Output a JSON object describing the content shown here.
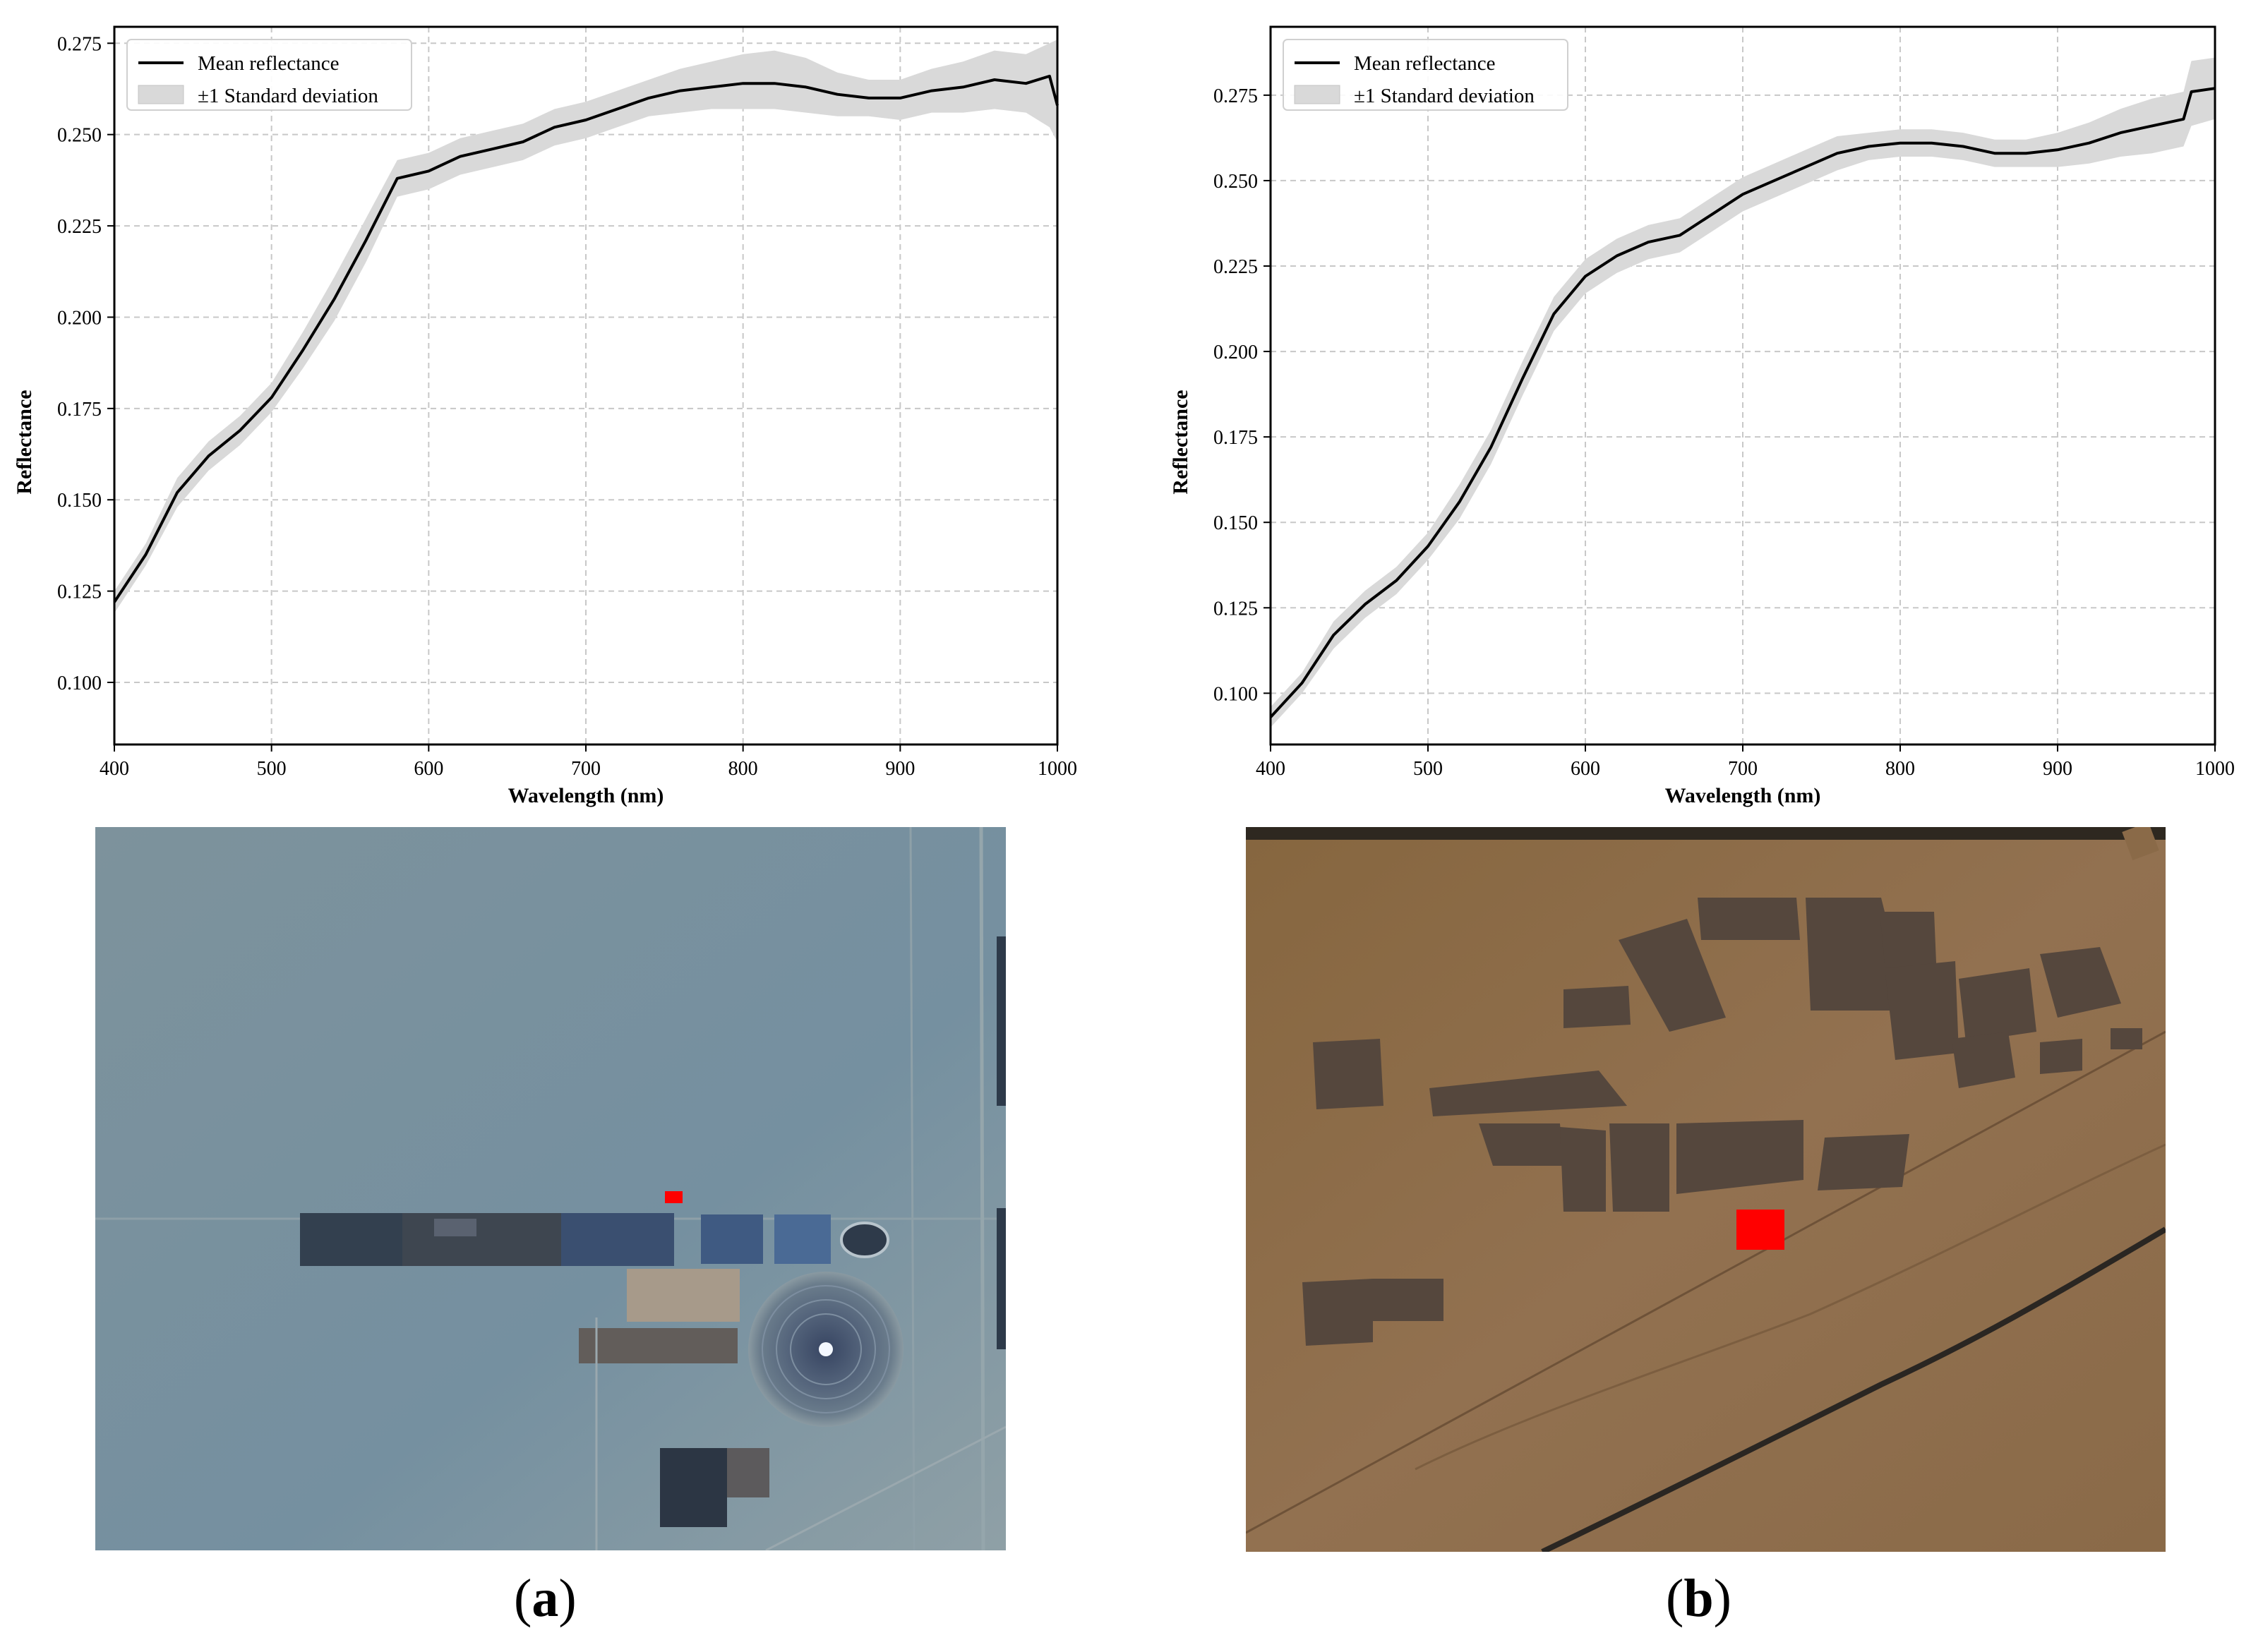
{
  "chart_data": [
    {
      "panel": "a",
      "type": "line",
      "xlabel": "Wavelength (nm)",
      "ylabel": "Reflectance",
      "xlim": [
        400,
        1000
      ],
      "ylim": [
        0.083,
        0.2795
      ],
      "xticks": [
        400,
        500,
        600,
        700,
        800,
        900,
        1000
      ],
      "yticks": [
        0.1,
        0.125,
        0.15,
        0.175,
        0.2,
        0.225,
        0.25,
        0.275
      ],
      "ytick_labels": [
        "0.100",
        "0.125",
        "0.150",
        "0.175",
        "0.200",
        "0.225",
        "0.250",
        "0.275"
      ],
      "grid": true,
      "legend_position": "top-left",
      "legend": [
        "Mean reflectance",
        "±1 Standard deviation"
      ],
      "series": [
        {
          "name": "Mean reflectance",
          "x": [
            400,
            420,
            440,
            460,
            480,
            500,
            520,
            540,
            560,
            580,
            600,
            620,
            640,
            660,
            680,
            700,
            720,
            740,
            760,
            780,
            800,
            820,
            840,
            860,
            880,
            900,
            920,
            940,
            960,
            980,
            995,
            1000
          ],
          "y": [
            0.122,
            0.135,
            0.152,
            0.162,
            0.169,
            0.178,
            0.191,
            0.205,
            0.221,
            0.238,
            0.24,
            0.244,
            0.246,
            0.248,
            0.252,
            0.254,
            0.257,
            0.26,
            0.262,
            0.263,
            0.264,
            0.264,
            0.263,
            0.261,
            0.26,
            0.26,
            0.262,
            0.263,
            0.265,
            0.264,
            0.266,
            0.258
          ]
        },
        {
          "name": "±1 Standard deviation",
          "x": [
            400,
            420,
            440,
            460,
            480,
            500,
            520,
            540,
            560,
            580,
            600,
            620,
            640,
            660,
            680,
            700,
            720,
            740,
            760,
            780,
            800,
            820,
            840,
            860,
            880,
            900,
            920,
            940,
            960,
            980,
            995,
            1000
          ],
          "lower": [
            0.119,
            0.132,
            0.148,
            0.158,
            0.165,
            0.174,
            0.186,
            0.199,
            0.215,
            0.233,
            0.235,
            0.239,
            0.241,
            0.243,
            0.247,
            0.249,
            0.252,
            0.255,
            0.256,
            0.257,
            0.257,
            0.257,
            0.256,
            0.255,
            0.255,
            0.254,
            0.256,
            0.256,
            0.257,
            0.256,
            0.252,
            0.248
          ],
          "upper": [
            0.125,
            0.138,
            0.156,
            0.166,
            0.173,
            0.182,
            0.196,
            0.211,
            0.227,
            0.243,
            0.245,
            0.249,
            0.251,
            0.253,
            0.257,
            0.259,
            0.262,
            0.265,
            0.268,
            0.27,
            0.272,
            0.273,
            0.271,
            0.267,
            0.265,
            0.265,
            0.268,
            0.27,
            0.273,
            0.272,
            0.275,
            0.276
          ]
        }
      ]
    },
    {
      "panel": "b",
      "type": "line",
      "xlabel": "Wavelength (nm)",
      "ylabel": "Reflectance",
      "xlim": [
        400,
        1000
      ],
      "ylim": [
        0.085,
        0.295
      ],
      "xticks": [
        400,
        500,
        600,
        700,
        800,
        900,
        1000
      ],
      "yticks": [
        0.1,
        0.125,
        0.15,
        0.175,
        0.2,
        0.225,
        0.25,
        0.275
      ],
      "ytick_labels": [
        "0.100",
        "0.125",
        "0.150",
        "0.175",
        "0.200",
        "0.225",
        "0.250",
        "0.275"
      ],
      "grid": true,
      "legend_position": "top-left",
      "legend": [
        "Mean reflectance",
        "±1 Standard deviation"
      ],
      "series": [
        {
          "name": "Mean reflectance",
          "x": [
            400,
            420,
            440,
            460,
            480,
            500,
            520,
            540,
            560,
            580,
            600,
            620,
            640,
            660,
            680,
            700,
            720,
            740,
            760,
            780,
            800,
            820,
            840,
            860,
            880,
            900,
            920,
            940,
            960,
            980,
            985,
            1000
          ],
          "y": [
            0.093,
            0.103,
            0.117,
            0.126,
            0.133,
            0.143,
            0.156,
            0.172,
            0.192,
            0.211,
            0.222,
            0.228,
            0.232,
            0.234,
            0.24,
            0.246,
            0.25,
            0.254,
            0.258,
            0.26,
            0.261,
            0.261,
            0.26,
            0.258,
            0.258,
            0.259,
            0.261,
            0.264,
            0.266,
            0.268,
            0.276,
            0.277
          ]
        },
        {
          "name": "±1 Standard deviation",
          "x": [
            400,
            420,
            440,
            460,
            480,
            500,
            520,
            540,
            560,
            580,
            600,
            620,
            640,
            660,
            680,
            700,
            720,
            740,
            760,
            780,
            800,
            820,
            840,
            860,
            880,
            900,
            920,
            940,
            960,
            980,
            985,
            1000
          ],
          "lower": [
            0.09,
            0.1,
            0.113,
            0.122,
            0.129,
            0.139,
            0.151,
            0.167,
            0.187,
            0.206,
            0.217,
            0.223,
            0.227,
            0.229,
            0.235,
            0.241,
            0.245,
            0.249,
            0.253,
            0.256,
            0.257,
            0.257,
            0.256,
            0.254,
            0.254,
            0.254,
            0.255,
            0.257,
            0.258,
            0.26,
            0.266,
            0.268
          ],
          "upper": [
            0.096,
            0.106,
            0.121,
            0.13,
            0.137,
            0.147,
            0.161,
            0.177,
            0.197,
            0.216,
            0.227,
            0.233,
            0.237,
            0.239,
            0.245,
            0.251,
            0.255,
            0.259,
            0.263,
            0.264,
            0.265,
            0.265,
            0.264,
            0.262,
            0.262,
            0.264,
            0.267,
            0.271,
            0.274,
            0.276,
            0.285,
            0.286
          ]
        }
      ]
    }
  ],
  "colors": {
    "mean_line": "#000000",
    "std_band": "#d9d9d9",
    "grid": "#c8c8c8",
    "roi_marker": "#ff0000",
    "satellite_a_ground": "#7a8f99",
    "satellite_b_ground": "#8d6a45"
  },
  "images": [
    {
      "panel": "a",
      "content": "satellite image",
      "marker": "red rectangle"
    },
    {
      "panel": "b",
      "content": "satellite image",
      "marker": "red rectangle"
    }
  ],
  "captions": [
    {
      "panel": "a",
      "open": "(",
      "letter": "a",
      "close": ")"
    },
    {
      "panel": "b",
      "open": "(",
      "letter": "b",
      "close": ")"
    }
  ]
}
